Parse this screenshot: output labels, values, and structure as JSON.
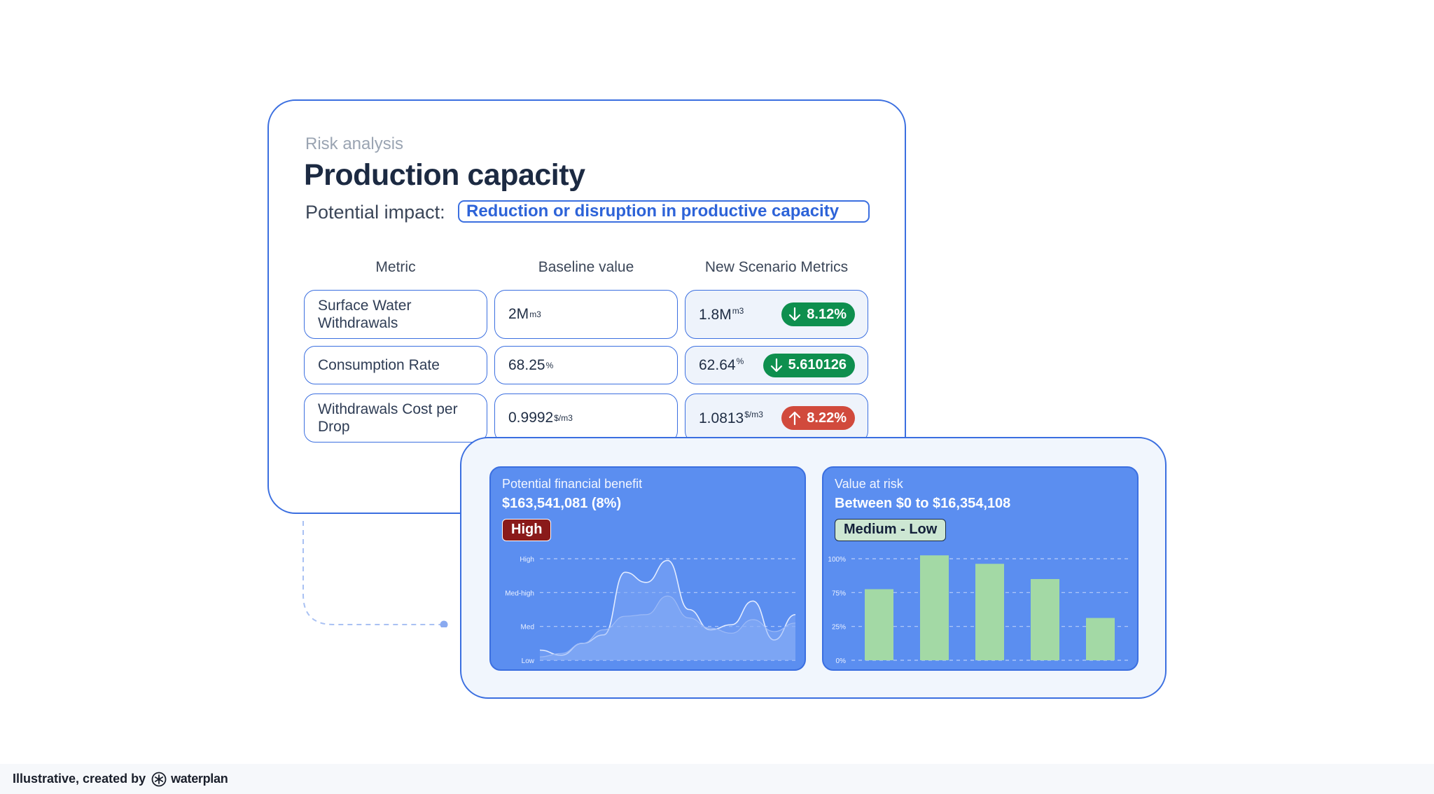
{
  "risk": {
    "eyebrow": "Risk analysis",
    "title": "Production capacity",
    "impact_label": "Potential impact:",
    "impact_value": "Reduction or disruption in productive capacity"
  },
  "table": {
    "headers": [
      "Metric",
      "Baseline value",
      "New Scenario Metrics"
    ],
    "rows": [
      {
        "metric": "Surface Water Withdrawals",
        "baseline": "2M",
        "baseline_unit": "m3",
        "scenario": "1.8M",
        "scenario_unit": "m3",
        "change": "8.12%",
        "direction": "down"
      },
      {
        "metric": "Consumption Rate",
        "baseline": "68.25",
        "baseline_unit": "%",
        "scenario": "62.64",
        "scenario_unit": "%",
        "change": "5.610126",
        "direction": "down"
      },
      {
        "metric": "Withdrawals Cost per Drop",
        "baseline": "0.9992",
        "baseline_unit": "$/m3",
        "scenario": "1.0813",
        "scenario_unit": "$/m3",
        "change": "8.22%",
        "direction": "up"
      }
    ]
  },
  "benefit": {
    "label": "Potential financial benefit",
    "value": "$163,541,081 (8%)",
    "tag": "High"
  },
  "var": {
    "label": "Value at risk",
    "value": "Between $0 to $16,354,108",
    "tag": "Medium - Low"
  },
  "chart_data": [
    {
      "type": "area",
      "title": "",
      "y_tick_labels": [
        "Low",
        "Med",
        "Med-high",
        "High"
      ],
      "ylim": [
        0,
        3
      ],
      "grid": true,
      "series": [
        {
          "values": [
            0.3,
            0.15,
            0.5,
            0.75,
            2.6,
            2.3,
            2.95,
            1.5,
            0.9,
            1.05,
            1.75,
            0.6,
            1.35
          ]
        },
        {
          "values": [
            0.1,
            0.2,
            0.5,
            0.9,
            1.3,
            1.35,
            1.9,
            1.25,
            0.95,
            0.8,
            1.2,
            0.85,
            1.1
          ]
        }
      ]
    },
    {
      "type": "bar",
      "title": "",
      "y_tick_labels": [
        "0%",
        "25%",
        "75%",
        "100%"
      ],
      "ylim": [
        0,
        3
      ],
      "grid": true,
      "categories": [
        "",
        "",
        "",
        "",
        ""
      ],
      "values": [
        2.1,
        3.1,
        2.85,
        2.4,
        1.25
      ],
      "colors": {
        "bar": "#a3d9a5",
        "grid": "#c9d9fb",
        "panel": "#5b8ef0"
      }
    }
  ],
  "footer": {
    "text": "Illustrative, created by",
    "brand": "waterplan"
  }
}
